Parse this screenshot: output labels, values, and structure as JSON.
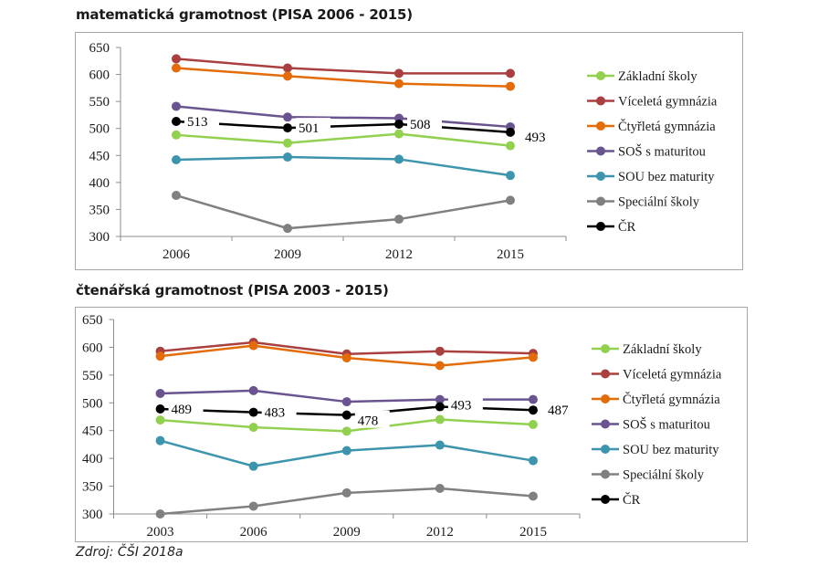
{
  "source_note": "Zdroj: ČŠI 2018a",
  "series_colors": {
    "zakladni": "#92d050",
    "viceleta": "#a9403f",
    "ctyrleta": "#e36c09",
    "sos": "#6a548f",
    "sou": "#3d95ad",
    "specialni": "#808080",
    "cr": "#000000"
  },
  "chart_data": [
    {
      "type": "line",
      "title": "matematická gramotnost (PISA 2006 - 2015)",
      "xlabel": "",
      "ylabel": "",
      "categories": [
        "2006",
        "2009",
        "2012",
        "2015"
      ],
      "ylim": [
        300,
        650
      ],
      "yticks": [
        300,
        350,
        400,
        450,
        500,
        550,
        600,
        650
      ],
      "grid": false,
      "legend_position": "right",
      "series": [
        {
          "key": "zakladni",
          "name": "Základní školy",
          "values": [
            488,
            473,
            490,
            468
          ]
        },
        {
          "key": "viceleta",
          "name": "Víceletá gymnázia",
          "values": [
            629,
            612,
            602,
            602
          ]
        },
        {
          "key": "ctyrleta",
          "name": "Čtyřletá gymnázia",
          "values": [
            612,
            597,
            583,
            578
          ]
        },
        {
          "key": "sos",
          "name": "SOŠ s maturitou",
          "values": [
            541,
            521,
            519,
            503
          ]
        },
        {
          "key": "sou",
          "name": "SOU bez maturity",
          "values": [
            442,
            447,
            443,
            413
          ]
        },
        {
          "key": "specialni",
          "name": "Speciální školy",
          "values": [
            376,
            315,
            332,
            367
          ]
        },
        {
          "key": "cr",
          "name": "ČR",
          "values": [
            513,
            501,
            508,
            493
          ],
          "data_labels": [
            "513",
            "501",
            "508",
            "493"
          ]
        }
      ]
    },
    {
      "type": "line",
      "title": "čtenářská gramotnost (PISA 2003 - 2015)",
      "xlabel": "",
      "ylabel": "",
      "categories": [
        "2003",
        "2006",
        "2009",
        "2012",
        "2015"
      ],
      "ylim": [
        300,
        650
      ],
      "yticks": [
        300,
        350,
        400,
        450,
        500,
        550,
        600,
        650
      ],
      "grid": false,
      "legend_position": "right",
      "series": [
        {
          "key": "zakladni",
          "name": "Základní školy",
          "values": [
            469,
            456,
            449,
            470,
            461
          ]
        },
        {
          "key": "viceleta",
          "name": "Víceletá gymnázia",
          "values": [
            593,
            609,
            588,
            593,
            589
          ]
        },
        {
          "key": "ctyrleta",
          "name": "Čtyřletá gymnázia",
          "values": [
            584,
            603,
            581,
            567,
            582
          ]
        },
        {
          "key": "sos",
          "name": "SOŠ s maturitou",
          "values": [
            517,
            522,
            502,
            506,
            506
          ]
        },
        {
          "key": "sou",
          "name": "SOU bez maturity",
          "values": [
            432,
            386,
            414,
            424,
            396
          ]
        },
        {
          "key": "specialni",
          "name": "Speciální školy",
          "values": [
            300,
            314,
            338,
            346,
            332
          ]
        },
        {
          "key": "cr",
          "name": "ČR",
          "values": [
            489,
            483,
            478,
            493,
            487
          ],
          "data_labels": [
            "489",
            "483",
            "478",
            "493",
            "487"
          ]
        }
      ]
    }
  ]
}
